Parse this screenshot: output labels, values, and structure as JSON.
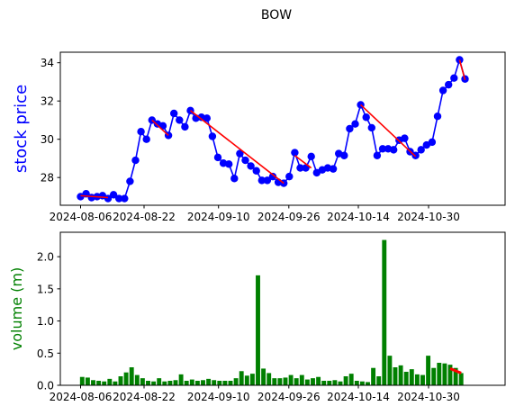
{
  "chart_data": [
    {
      "type": "line",
      "title": "BOW",
      "ylabel": "stock price",
      "ylabel_color": "#0000ff",
      "line_color": "#0000ff",
      "trend_color": "#ff0000",
      "ylim": [
        26.55,
        34.55
      ],
      "yticks": [
        "28",
        "30",
        "32",
        "34"
      ],
      "xticks": [
        "2024-08-06",
        "2024-08-22",
        "2024-09-10",
        "2024-09-26",
        "2024-10-14",
        "2024-10-30"
      ],
      "series": [
        {
          "values": [
            27.0,
            27.15,
            26.95,
            27.0,
            27.05,
            26.9,
            27.1,
            26.9,
            26.9,
            27.8,
            28.9,
            30.4,
            30.0,
            31.0,
            30.8,
            30.7,
            30.2,
            31.35,
            31.0,
            30.65,
            31.5,
            31.1,
            31.15,
            31.1,
            30.15,
            29.05,
            28.75,
            28.7,
            27.95,
            29.25,
            28.9,
            28.6,
            28.35,
            27.85,
            27.85,
            28.05,
            27.75,
            27.7,
            28.05,
            29.3,
            28.5,
            28.5,
            29.1,
            28.25,
            28.4,
            28.5,
            28.45,
            29.25,
            29.15,
            30.55,
            30.8,
            31.8,
            31.15,
            30.6,
            29.15,
            29.5,
            29.5,
            29.45,
            29.95,
            30.05,
            29.35,
            29.15,
            29.45,
            29.7,
            29.85,
            31.2,
            32.55,
            32.85,
            33.2,
            34.15,
            33.15
          ]
        }
      ],
      "trend_segments": [
        [
          [
            0,
            27.05
          ],
          [
            5,
            26.95
          ]
        ],
        [
          [
            13,
            31.0
          ],
          [
            16,
            30.2
          ]
        ],
        [
          [
            20,
            31.5
          ],
          [
            37,
            27.7
          ]
        ],
        [
          [
            39,
            29.15
          ],
          [
            42,
            28.5
          ]
        ],
        [
          [
            51,
            31.8
          ],
          [
            61,
            29.1
          ]
        ],
        [
          [
            69,
            34.15
          ],
          [
            70,
            33.1
          ]
        ]
      ]
    },
    {
      "type": "bar",
      "ylabel": "volume (m)",
      "ylabel_color": "#008000",
      "bar_color": "#008000",
      "trend_color": "#ff0000",
      "ylim": [
        0,
        2.38
      ],
      "yticks": [
        "0.0",
        "0.5",
        "1.0",
        "1.5",
        "2.0"
      ],
      "xticks": [
        "2024-08-06",
        "2024-08-22",
        "2024-09-10",
        "2024-09-26",
        "2024-10-14",
        "2024-10-30"
      ],
      "values": [
        0.13,
        0.12,
        0.08,
        0.07,
        0.06,
        0.1,
        0.06,
        0.14,
        0.2,
        0.28,
        0.16,
        0.11,
        0.07,
        0.06,
        0.11,
        0.06,
        0.07,
        0.08,
        0.17,
        0.07,
        0.09,
        0.07,
        0.08,
        0.1,
        0.08,
        0.07,
        0.07,
        0.07,
        0.11,
        0.22,
        0.15,
        0.18,
        1.71,
        0.26,
        0.19,
        0.11,
        0.11,
        0.12,
        0.16,
        0.11,
        0.16,
        0.09,
        0.11,
        0.13,
        0.07,
        0.07,
        0.08,
        0.06,
        0.14,
        0.18,
        0.07,
        0.06,
        0.05,
        0.27,
        0.14,
        2.26,
        0.46,
        0.28,
        0.31,
        0.21,
        0.25,
        0.17,
        0.16,
        0.46,
        0.27,
        0.35,
        0.34,
        0.32,
        0.27,
        0.19
      ],
      "trend_segment": [
        [
          67,
          0.26
        ],
        [
          69,
          0.19
        ]
      ]
    }
  ]
}
